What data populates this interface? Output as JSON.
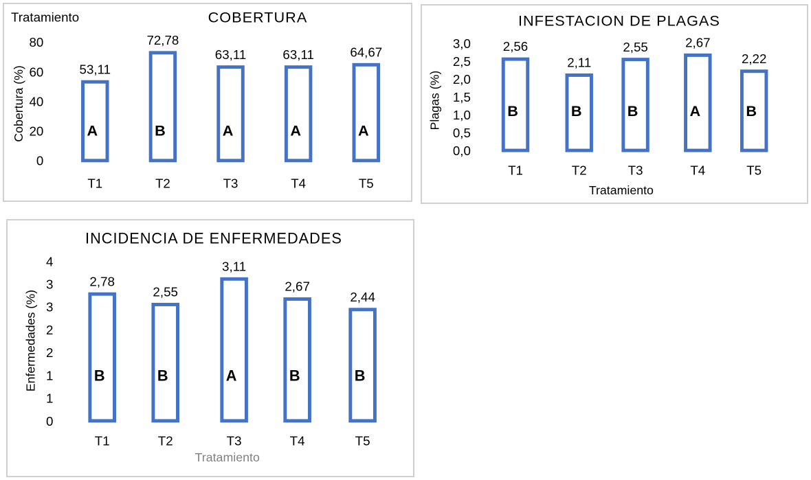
{
  "chart_data": [
    {
      "type": "bar",
      "title": "COBERTURA",
      "corner_label": "Tratamiento",
      "xlabel": "",
      "ylabel": "Cobertura (%)",
      "categories": [
        "T1",
        "T2",
        "T3",
        "T4",
        "T5"
      ],
      "values": [
        53.11,
        72.78,
        63.11,
        63.11,
        64.67
      ],
      "value_labels": [
        "53,11",
        "72,78",
        "63,11",
        "63,11",
        "64,67"
      ],
      "group_letters": [
        "A",
        "B",
        "A",
        "A",
        "A"
      ],
      "y_ticks": [
        "0",
        "20",
        "40",
        "60",
        "80"
      ],
      "ylim": [
        0,
        80
      ],
      "grid": false,
      "legend": "none",
      "colors": {
        "bar_outline": "#4472c4",
        "bar_fill": "#ffffff"
      }
    },
    {
      "type": "bar",
      "title": "INFESTACION DE PLAGAS",
      "xlabel": "Tratamiento",
      "ylabel": "Plagas (%)",
      "categories": [
        "T1",
        "T2",
        "T3",
        "T4",
        "T5"
      ],
      "values": [
        2.56,
        2.11,
        2.55,
        2.67,
        2.22
      ],
      "value_labels": [
        "2,56",
        "2,11",
        "2,55",
        "2,67",
        "2,22"
      ],
      "group_letters": [
        "B",
        "B",
        "B",
        "A",
        "B"
      ],
      "y_ticks": [
        "0,0",
        "0,5",
        "1,0",
        "1,5",
        "2,0",
        "2,5",
        "3,0"
      ],
      "ylim": [
        0,
        3
      ],
      "grid": false,
      "legend": "none",
      "colors": {
        "bar_outline": "#4472c4",
        "bar_fill": "#ffffff"
      }
    },
    {
      "type": "bar",
      "title": "INCIDENCIA DE ENFERMEDADES",
      "xlabel": "Tratamiento",
      "ylabel": "Enfermedades (%)",
      "categories": [
        "T1",
        "T2",
        "T3",
        "T4",
        "T5"
      ],
      "values": [
        2.78,
        2.55,
        3.11,
        2.67,
        2.44
      ],
      "value_labels": [
        "2,78",
        "2,55",
        "3,11",
        "2,67",
        "2,44"
      ],
      "group_letters": [
        "B",
        "B",
        "A",
        "B",
        "B"
      ],
      "y_ticks": [
        "0",
        "1",
        "1",
        "2",
        "2",
        "3",
        "3",
        "4"
      ],
      "ylim": [
        0,
        3.5
      ],
      "grid": false,
      "legend": "none",
      "colors": {
        "bar_outline": "#4472c4",
        "bar_fill": "#ffffff",
        "xlabel_text": "#808080"
      }
    }
  ]
}
